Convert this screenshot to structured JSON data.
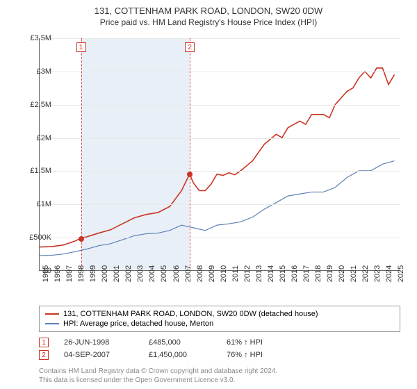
{
  "header": {
    "title": "131, COTTENHAM PARK ROAD, LONDON, SW20 0DW",
    "subtitle": "Price paid vs. HM Land Registry's House Price Index (HPI)"
  },
  "chart": {
    "type": "line",
    "background_color": "#ffffff",
    "grid_color": "#e8e8e8",
    "axis_color": "#666666",
    "shade_color": "#e8eff7",
    "xlim": [
      1995,
      2025.5
    ],
    "ylim": [
      0,
      3500000
    ],
    "ytick_step": 500000,
    "ytick_labels": [
      "£0",
      "£500K",
      "£1M",
      "£1.5M",
      "£2M",
      "£2.5M",
      "£3M",
      "£3.5M"
    ],
    "xtick_step": 1,
    "xtick_labels": [
      "1995",
      "1996",
      "1997",
      "1998",
      "1999",
      "2000",
      "2001",
      "2002",
      "2003",
      "2004",
      "2005",
      "2006",
      "2007",
      "2008",
      "2009",
      "2010",
      "2011",
      "2012",
      "2013",
      "2014",
      "2015",
      "2016",
      "2017",
      "2018",
      "2019",
      "2020",
      "2021",
      "2022",
      "2023",
      "2024",
      "2025"
    ],
    "shade_range": [
      1998.49,
      2007.68
    ],
    "markers": [
      {
        "id": "1",
        "x": 1998.49,
        "y": 485000
      },
      {
        "id": "2",
        "x": 2007.68,
        "y": 1450000
      }
    ],
    "marker_box_color": "#cc3322",
    "label_fontsize": 11,
    "title_fontsize": 13,
    "series": [
      {
        "name": "price",
        "label": "131, COTTENHAM PARK ROAD, LONDON, SW20 0DW (detached house)",
        "color": "#cc3322",
        "line_width": 1.6,
        "points": [
          [
            1995,
            350000
          ],
          [
            1996,
            355000
          ],
          [
            1997,
            380000
          ],
          [
            1998,
            440000
          ],
          [
            1998.49,
            485000
          ],
          [
            1999,
            505000
          ],
          [
            2000,
            560000
          ],
          [
            2001,
            610000
          ],
          [
            2002,
            700000
          ],
          [
            2003,
            790000
          ],
          [
            2004,
            840000
          ],
          [
            2005,
            870000
          ],
          [
            2006,
            960000
          ],
          [
            2007,
            1200000
          ],
          [
            2007.68,
            1450000
          ],
          [
            2008,
            1320000
          ],
          [
            2008.5,
            1200000
          ],
          [
            2009,
            1200000
          ],
          [
            2009.5,
            1300000
          ],
          [
            2010,
            1450000
          ],
          [
            2010.5,
            1430000
          ],
          [
            2011,
            1470000
          ],
          [
            2011.5,
            1440000
          ],
          [
            2012,
            1500000
          ],
          [
            2013,
            1650000
          ],
          [
            2014,
            1900000
          ],
          [
            2015,
            2050000
          ],
          [
            2015.5,
            2000000
          ],
          [
            2016,
            2150000
          ],
          [
            2017,
            2250000
          ],
          [
            2017.5,
            2200000
          ],
          [
            2018,
            2350000
          ],
          [
            2019,
            2350000
          ],
          [
            2019.5,
            2300000
          ],
          [
            2020,
            2500000
          ],
          [
            2021,
            2700000
          ],
          [
            2021.5,
            2750000
          ],
          [
            2022,
            2900000
          ],
          [
            2022.5,
            3000000
          ],
          [
            2023,
            2900000
          ],
          [
            2023.5,
            3050000
          ],
          [
            2024,
            3050000
          ],
          [
            2024.5,
            2800000
          ],
          [
            2025,
            2950000
          ]
        ]
      },
      {
        "name": "hpi",
        "label": "HPI: Average price, detached house, Merton",
        "color": "#5b7fb5",
        "line_width": 1.2,
        "points": [
          [
            1995,
            220000
          ],
          [
            1996,
            225000
          ],
          [
            1997,
            245000
          ],
          [
            1998,
            280000
          ],
          [
            1999,
            320000
          ],
          [
            2000,
            370000
          ],
          [
            2001,
            400000
          ],
          [
            2002,
            460000
          ],
          [
            2003,
            520000
          ],
          [
            2004,
            550000
          ],
          [
            2005,
            560000
          ],
          [
            2006,
            600000
          ],
          [
            2007,
            680000
          ],
          [
            2008,
            640000
          ],
          [
            2009,
            600000
          ],
          [
            2010,
            680000
          ],
          [
            2011,
            700000
          ],
          [
            2012,
            730000
          ],
          [
            2013,
            800000
          ],
          [
            2014,
            920000
          ],
          [
            2015,
            1020000
          ],
          [
            2016,
            1120000
          ],
          [
            2017,
            1150000
          ],
          [
            2018,
            1180000
          ],
          [
            2019,
            1180000
          ],
          [
            2020,
            1250000
          ],
          [
            2021,
            1400000
          ],
          [
            2022,
            1500000
          ],
          [
            2023,
            1500000
          ],
          [
            2024,
            1600000
          ],
          [
            2025,
            1650000
          ]
        ]
      }
    ]
  },
  "legend": {
    "items": [
      {
        "color": "#cc3322",
        "label": "131, COTTENHAM PARK ROAD, LONDON, SW20 0DW (detached house)"
      },
      {
        "color": "#5b7fb5",
        "label": "HPI: Average price, detached house, Merton"
      }
    ]
  },
  "transactions": {
    "rows": [
      {
        "id": "1",
        "date": "26-JUN-1998",
        "price": "£485,000",
        "pct": "61% ↑ HPI"
      },
      {
        "id": "2",
        "date": "04-SEP-2007",
        "price": "£1,450,000",
        "pct": "76% ↑ HPI"
      }
    ]
  },
  "footer": {
    "line1": "Contains HM Land Registry data © Crown copyright and database right 2024.",
    "line2": "This data is licensed under the Open Government Licence v3.0."
  }
}
